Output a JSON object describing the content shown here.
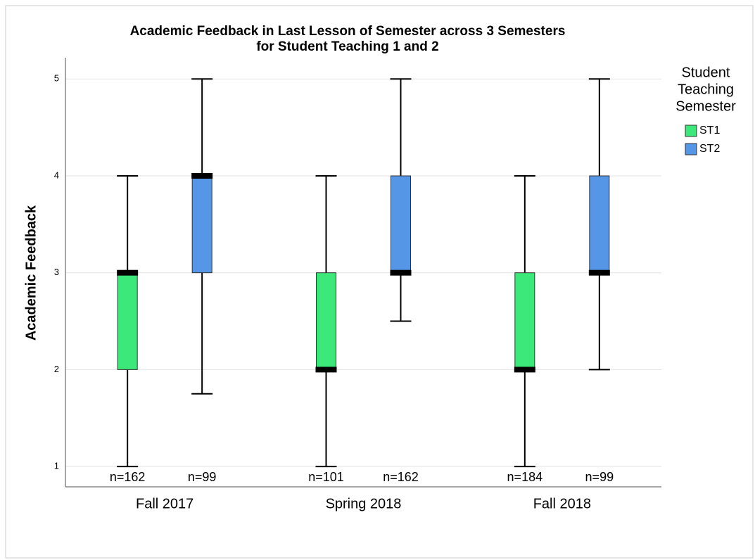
{
  "chart_data": {
    "type": "box",
    "title": [
      "Academic Feedback in Last Lesson of Semester across 3 Semesters",
      "for Student Teaching 1 and 2"
    ],
    "y_label": "Academic Feedback",
    "categories": [
      "Fall 2017",
      "Spring 2018",
      "Fall 2018"
    ],
    "legend_title": [
      "Student",
      "Teaching",
      "Semester"
    ],
    "legend_position": "right",
    "grid": true,
    "ylim": [
      0.79,
      5.22
    ],
    "yticks": [
      1,
      2,
      3,
      4,
      5
    ],
    "series": [
      {
        "name": "ST1",
        "color": "#3de87a",
        "min": [
          1,
          1,
          1
        ],
        "q1": [
          2,
          2,
          2
        ],
        "median": [
          3,
          2,
          2
        ],
        "q3": [
          3,
          3,
          3
        ],
        "max": [
          4,
          4,
          4
        ],
        "n_labels": [
          "n=162",
          "n=101",
          "n=184"
        ]
      },
      {
        "name": "ST2",
        "color": "#5596e6",
        "min": [
          1.75,
          2.5,
          2
        ],
        "q1": [
          3,
          3,
          3
        ],
        "median": [
          4,
          3,
          3
        ],
        "q3": [
          4,
          4,
          4
        ],
        "max": [
          5,
          5,
          5
        ],
        "n_labels": [
          "n=99",
          "n=162",
          "n=99"
        ]
      }
    ]
  }
}
